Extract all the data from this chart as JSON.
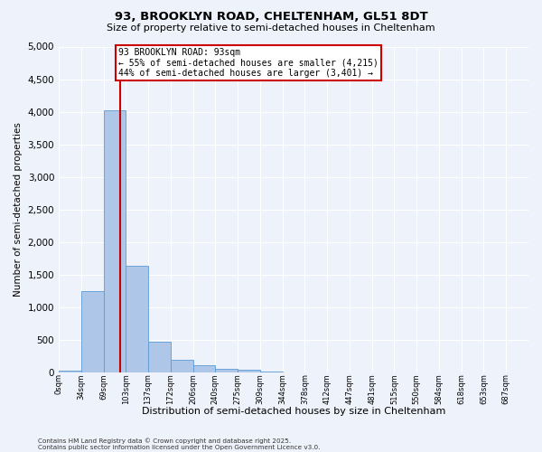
{
  "title": "93, BROOKLYN ROAD, CHELTENHAM, GL51 8DT",
  "subtitle": "Size of property relative to semi-detached houses in Cheltenham",
  "xlabel": "Distribution of semi-detached houses by size in Cheltenham",
  "ylabel": "Number of semi-detached properties",
  "bin_labels": [
    "0sqm",
    "34sqm",
    "69sqm",
    "103sqm",
    "137sqm",
    "172sqm",
    "206sqm",
    "240sqm",
    "275sqm",
    "309sqm",
    "344sqm",
    "378sqm",
    "412sqm",
    "447sqm",
    "481sqm",
    "515sqm",
    "550sqm",
    "584sqm",
    "618sqm",
    "653sqm",
    "687sqm"
  ],
  "bar_values": [
    30,
    1240,
    4020,
    1630,
    470,
    195,
    115,
    55,
    40,
    10,
    0,
    0,
    0,
    0,
    0,
    0,
    0,
    0,
    0,
    0
  ],
  "bar_color": "#aec6e8",
  "bar_edge_color": "#5b9bd5",
  "property_sqm": 93,
  "annotation_title": "93 BROOKLYN ROAD: 93sqm",
  "annotation_line1": "← 55% of semi-detached houses are smaller (4,215)",
  "annotation_line2": "44% of semi-detached houses are larger (3,401) →",
  "annotation_box_color": "#ffffff",
  "annotation_box_edge": "#cc0000",
  "vline_color": "#cc0000",
  "ylim": [
    0,
    5000
  ],
  "yticks": [
    0,
    500,
    1000,
    1500,
    2000,
    2500,
    3000,
    3500,
    4000,
    4500,
    5000
  ],
  "footer1": "Contains HM Land Registry data © Crown copyright and database right 2025.",
  "footer2": "Contains public sector information licensed under the Open Government Licence v3.0.",
  "bg_color": "#eef2fa",
  "grid_color": "#ffffff"
}
